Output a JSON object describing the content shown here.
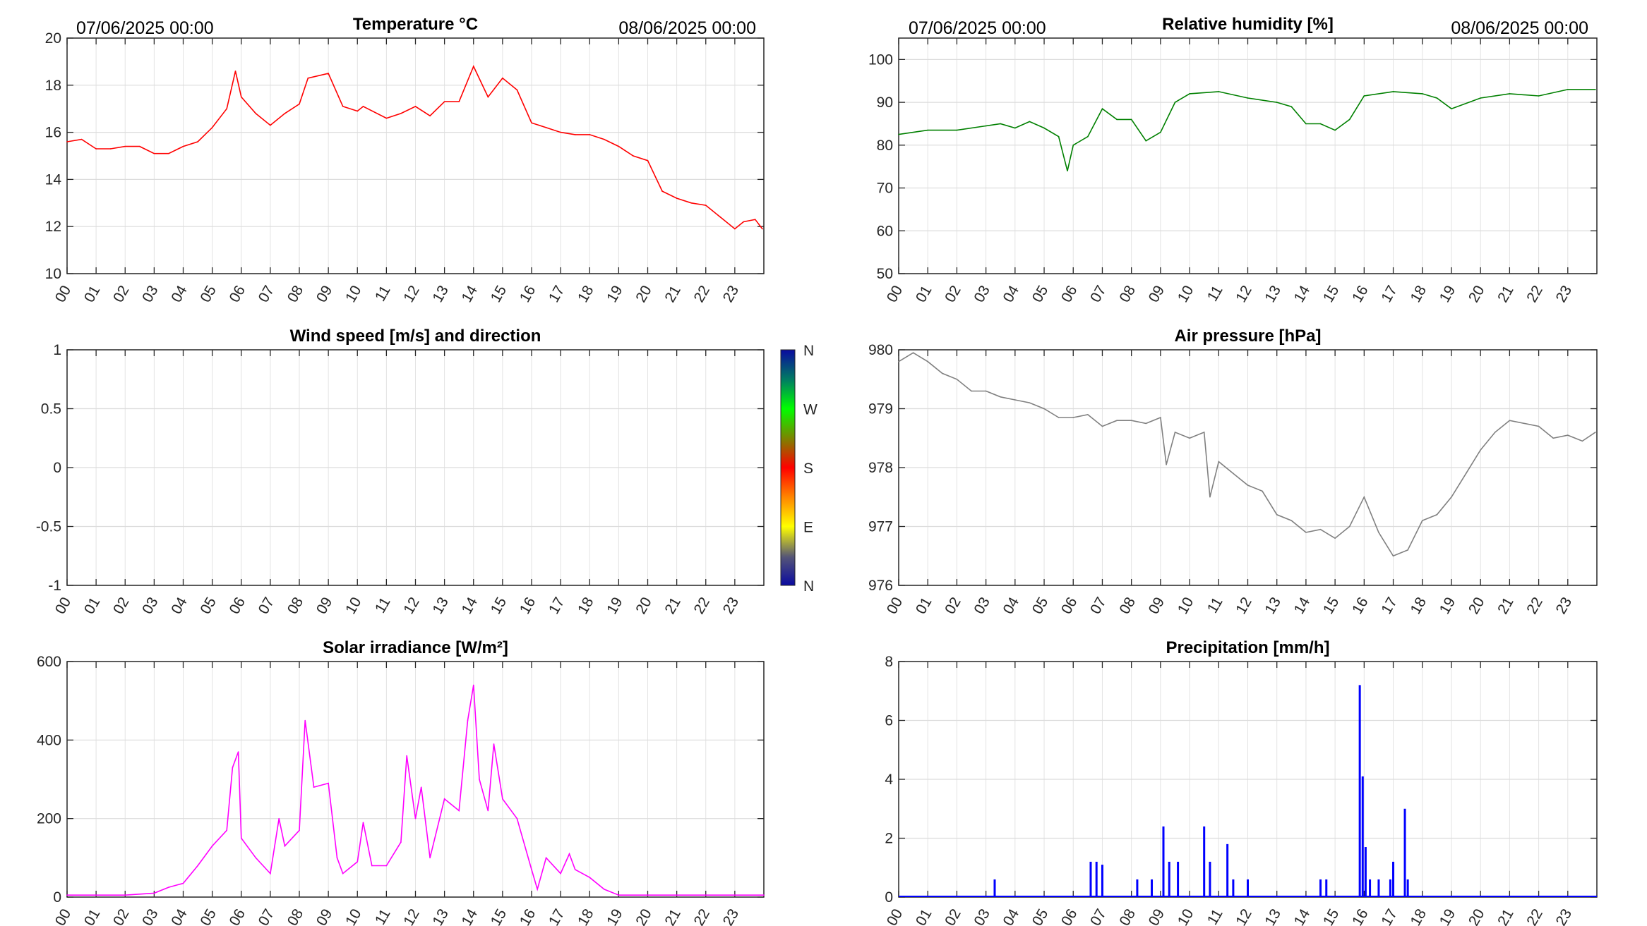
{
  "header": {
    "start_date": "07/06/2025 00:00",
    "end_date": "08/06/2025 00:00"
  },
  "chart_data": [
    {
      "id": "temperature",
      "type": "line",
      "title": "Temperature °C",
      "color": "#ff0000",
      "ylim": [
        10,
        20
      ],
      "yticks": [
        10,
        12,
        14,
        16,
        18,
        20
      ],
      "x": [
        0,
        0.5,
        1,
        1.5,
        2,
        2.5,
        3,
        3.5,
        4,
        4.5,
        5,
        5.5,
        5.8,
        6,
        6.5,
        7,
        7.5,
        8,
        8.3,
        9,
        9.5,
        10,
        10.2,
        11,
        11.5,
        12,
        12.5,
        13,
        13.5,
        14,
        14.5,
        15,
        15.5,
        16,
        16.5,
        17,
        17.5,
        18,
        18.5,
        19,
        19.5,
        20,
        20.5,
        21,
        21.5,
        22,
        22.5,
        23,
        23.3,
        23.7,
        23.95
      ],
      "y": [
        15.6,
        15.7,
        15.3,
        15.3,
        15.4,
        15.4,
        15.1,
        15.1,
        15.4,
        15.6,
        16.2,
        17.0,
        18.6,
        17.5,
        16.8,
        16.3,
        16.8,
        17.2,
        18.3,
        18.5,
        17.1,
        16.9,
        17.1,
        16.6,
        16.8,
        17.1,
        16.7,
        17.3,
        17.3,
        18.8,
        17.5,
        18.3,
        17.8,
        16.4,
        16.2,
        16.0,
        15.9,
        15.9,
        15.7,
        15.4,
        15.0,
        14.8,
        13.5,
        13.2,
        13.0,
        12.9,
        12.4,
        11.9,
        12.2,
        12.3,
        11.9
      ]
    },
    {
      "id": "humidity",
      "type": "line",
      "title": "Relative humidity [%]",
      "color": "#008000",
      "ylim": [
        50,
        105
      ],
      "yticks": [
        50,
        60,
        70,
        80,
        90,
        100
      ],
      "x": [
        0,
        1,
        2,
        3,
        3.5,
        4,
        4.5,
        5,
        5.5,
        5.8,
        6,
        6.5,
        7,
        7.5,
        8,
        8.5,
        9,
        9.5,
        10,
        11,
        12,
        13,
        13.5,
        14,
        14.5,
        15,
        15.5,
        16,
        17,
        18,
        18.5,
        19,
        20,
        21,
        22,
        23,
        23.95
      ],
      "y": [
        82.5,
        83.5,
        83.5,
        84.5,
        85,
        84,
        85.5,
        84,
        82,
        74,
        80,
        82,
        88.5,
        86,
        86,
        81,
        83,
        90,
        92,
        92.5,
        91,
        90,
        89,
        85,
        85,
        83.5,
        86,
        91.5,
        92.5,
        92,
        91,
        88.5,
        91,
        92,
        91.5,
        93,
        93
      ]
    },
    {
      "id": "wind",
      "type": "line",
      "title": "Wind speed [m/s] and direction",
      "color": "#000000",
      "ylim": [
        -1,
        1
      ],
      "yticks": [
        -1,
        -0.5,
        0,
        0.5,
        1
      ],
      "x": [],
      "y": [],
      "colorbar": {
        "labels": [
          "N",
          "W",
          "S",
          "E",
          "N"
        ]
      }
    },
    {
      "id": "pressure",
      "type": "line",
      "title": "Air pressure [hPa]",
      "color": "#808080",
      "ylim": [
        976,
        980
      ],
      "yticks": [
        976,
        977,
        978,
        979,
        980
      ],
      "x": [
        0,
        0.5,
        1,
        1.5,
        2,
        2.5,
        3,
        3.5,
        4,
        4.5,
        5,
        5.5,
        6,
        6.5,
        7,
        7.5,
        8,
        8.5,
        9,
        9.2,
        9.5,
        10,
        10.5,
        10.7,
        11,
        11.5,
        12,
        12.5,
        13,
        13.5,
        14,
        14.5,
        15,
        15.5,
        16,
        16.5,
        17,
        17.5,
        18,
        18.5,
        19,
        19.5,
        20,
        20.5,
        21,
        22,
        22.5,
        23,
        23.5,
        23.95
      ],
      "y": [
        979.8,
        979.95,
        979.8,
        979.6,
        979.5,
        979.3,
        979.3,
        979.2,
        979.15,
        979.1,
        979.0,
        978.85,
        978.85,
        978.9,
        978.7,
        978.8,
        978.8,
        978.75,
        978.85,
        978.05,
        978.6,
        978.5,
        978.6,
        977.5,
        978.1,
        977.9,
        977.7,
        977.6,
        977.2,
        977.1,
        976.9,
        976.95,
        976.8,
        977.0,
        977.5,
        976.9,
        976.5,
        976.6,
        977.1,
        977.2,
        977.5,
        977.9,
        978.3,
        978.6,
        978.8,
        978.7,
        978.5,
        978.55,
        978.45,
        978.6
      ]
    },
    {
      "id": "solar",
      "type": "line",
      "title": "Solar irradiance [W/m²]",
      "color": "#ff00ff",
      "ylim": [
        0,
        600
      ],
      "yticks": [
        0,
        200,
        400,
        600
      ],
      "x": [
        0,
        2,
        3,
        3.5,
        4,
        4.5,
        5,
        5.5,
        5.7,
        5.9,
        6,
        6.5,
        7,
        7.3,
        7.5,
        8,
        8.2,
        8.5,
        9,
        9.3,
        9.5,
        10,
        10.2,
        10.5,
        11,
        11.5,
        11.7,
        12,
        12.2,
        12.5,
        13,
        13.5,
        13.8,
        14,
        14.2,
        14.5,
        14.7,
        15,
        15.5,
        16,
        16.2,
        16.5,
        17,
        17.3,
        17.5,
        18,
        18.5,
        19,
        24
      ],
      "y": [
        5,
        5,
        10,
        25,
        35,
        80,
        130,
        170,
        330,
        370,
        150,
        100,
        60,
        200,
        130,
        170,
        450,
        280,
        290,
        100,
        60,
        90,
        190,
        80,
        80,
        140,
        360,
        200,
        280,
        100,
        250,
        220,
        450,
        540,
        300,
        220,
        390,
        250,
        200,
        70,
        20,
        100,
        60,
        110,
        70,
        50,
        20,
        5,
        5
      ]
    },
    {
      "id": "precipitation",
      "type": "bar",
      "title": "Precipitation [mm/h]",
      "color": "#0000ff",
      "ylim": [
        0,
        8
      ],
      "yticks": [
        0,
        2,
        4,
        6,
        8
      ],
      "x": [
        3.3,
        6.6,
        6.8,
        7.0,
        8.2,
        8.7,
        9.1,
        9.3,
        9.6,
        10.5,
        10.7,
        11.3,
        11.5,
        12.0,
        14.5,
        14.7,
        15.85,
        15.95,
        16.05,
        16.2,
        16.5,
        16.9,
        17.0,
        17.4,
        17.5
      ],
      "y": [
        0.6,
        1.2,
        1.2,
        1.1,
        0.6,
        0.6,
        2.4,
        1.2,
        1.2,
        2.4,
        1.2,
        1.8,
        0.6,
        0.6,
        0.6,
        0.6,
        7.2,
        4.1,
        1.7,
        0.6,
        0.6,
        0.6,
        1.2,
        3.0,
        0.6
      ]
    }
  ],
  "xaxis": {
    "xlim": [
      0,
      24
    ],
    "tick_labels": [
      "00",
      "01",
      "02",
      "03",
      "04",
      "05",
      "06",
      "07",
      "08",
      "09",
      "10",
      "11",
      "12",
      "13",
      "14",
      "15",
      "16",
      "17",
      "18",
      "19",
      "20",
      "21",
      "22",
      "23"
    ]
  }
}
